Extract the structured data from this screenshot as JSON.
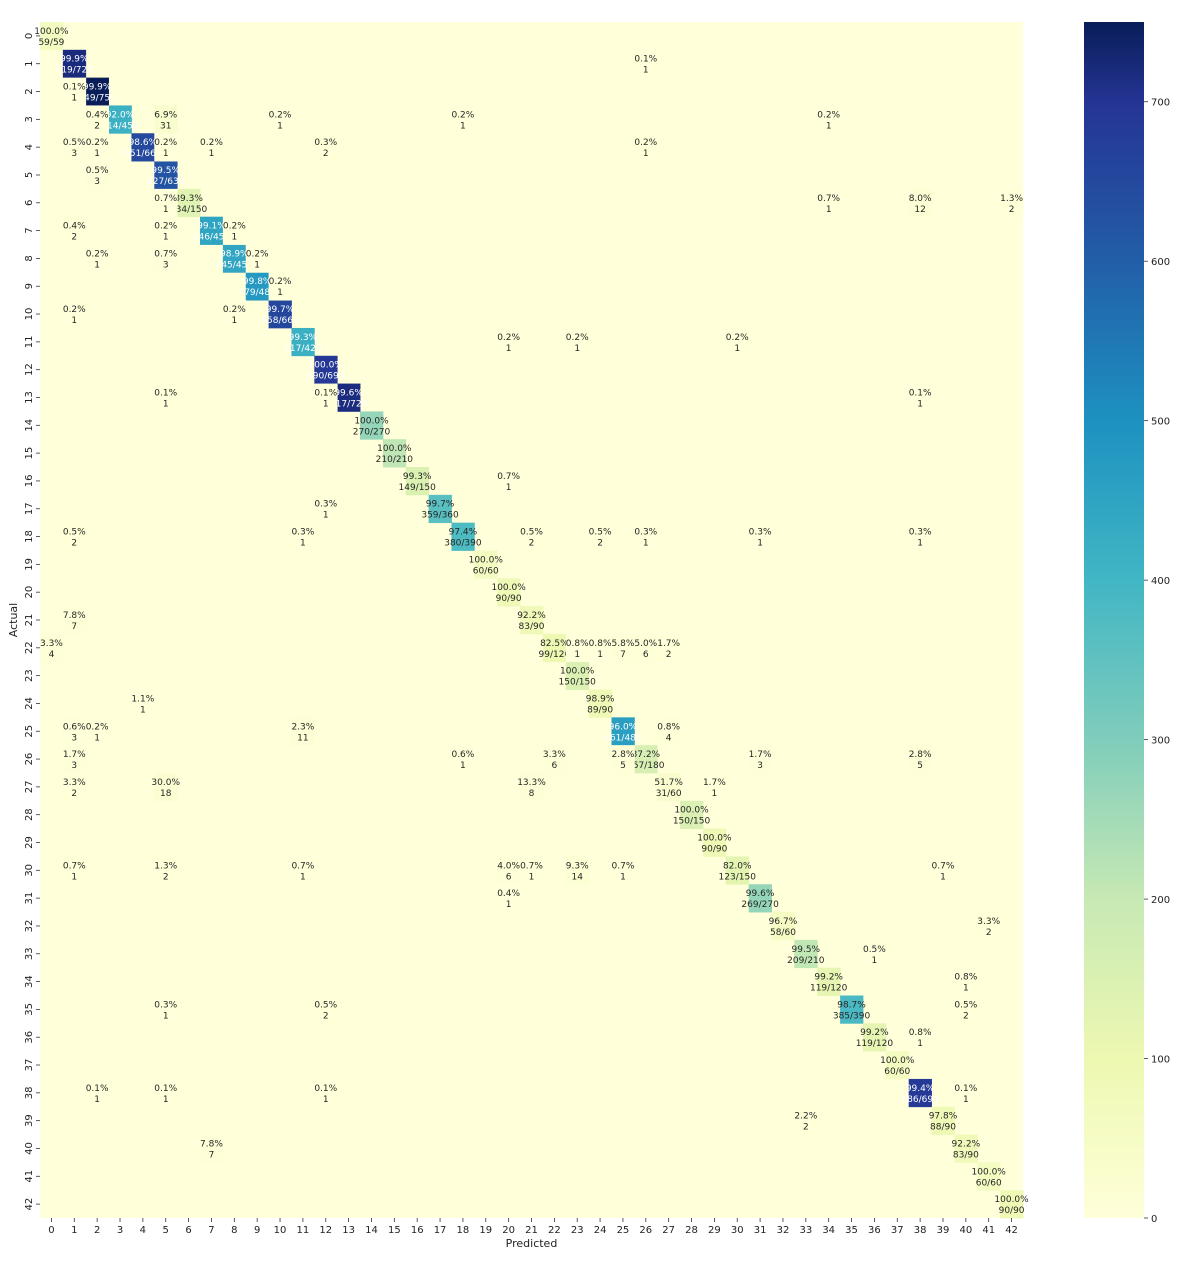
{
  "chart_data": {
    "type": "heatmap",
    "title": "",
    "xlabel": "Predicted",
    "ylabel": "Actual",
    "classes": [
      "0",
      "1",
      "2",
      "3",
      "4",
      "5",
      "6",
      "7",
      "8",
      "9",
      "10",
      "11",
      "12",
      "13",
      "14",
      "15",
      "16",
      "17",
      "18",
      "19",
      "20",
      "21",
      "22",
      "23",
      "24",
      "25",
      "26",
      "27",
      "28",
      "29",
      "30",
      "31",
      "32",
      "33",
      "34",
      "35",
      "36",
      "37",
      "38",
      "39",
      "40",
      "41",
      "42"
    ],
    "colormap": "YlGnBu",
    "colorbar": {
      "min": 0,
      "max": 750,
      "ticks": [
        0,
        100,
        200,
        300,
        400,
        500,
        600,
        700
      ]
    },
    "diagonal": [
      {
        "class": 0,
        "count": 59,
        "total": 59,
        "pct": "100.0%"
      },
      {
        "class": 1,
        "count": 719,
        "total": 720,
        "pct": "99.9%"
      },
      {
        "class": 2,
        "count": 749,
        "total": 750,
        "pct": "99.9%"
      },
      {
        "class": 3,
        "count": 414,
        "total": 450,
        "pct": "92.0%"
      },
      {
        "class": 4,
        "count": 651,
        "total": 660,
        "pct": "98.6%"
      },
      {
        "class": 5,
        "count": 627,
        "total": 630,
        "pct": "99.5%"
      },
      {
        "class": 6,
        "count": 134,
        "total": 150,
        "pct": "89.3%"
      },
      {
        "class": 7,
        "count": 446,
        "total": 450,
        "pct": "99.1%"
      },
      {
        "class": 8,
        "count": 445,
        "total": 450,
        "pct": "98.9%"
      },
      {
        "class": 9,
        "count": 479,
        "total": 480,
        "pct": "99.8%"
      },
      {
        "class": 10,
        "count": 658,
        "total": 660,
        "pct": "99.7%"
      },
      {
        "class": 11,
        "count": 417,
        "total": 420,
        "pct": "99.3%"
      },
      {
        "class": 12,
        "count": 690,
        "total": 690,
        "pct": "100.0%"
      },
      {
        "class": 13,
        "count": 717,
        "total": 720,
        "pct": "99.6%"
      },
      {
        "class": 14,
        "count": 270,
        "total": 270,
        "pct": "100.0%"
      },
      {
        "class": 15,
        "count": 210,
        "total": 210,
        "pct": "100.0%"
      },
      {
        "class": 16,
        "count": 149,
        "total": 150,
        "pct": "99.3%"
      },
      {
        "class": 17,
        "count": 359,
        "total": 360,
        "pct": "99.7%"
      },
      {
        "class": 18,
        "count": 380,
        "total": 390,
        "pct": "97.4%"
      },
      {
        "class": 19,
        "count": 60,
        "total": 60,
        "pct": "100.0%"
      },
      {
        "class": 20,
        "count": 90,
        "total": 90,
        "pct": "100.0%"
      },
      {
        "class": 21,
        "count": 83,
        "total": 90,
        "pct": "92.2%"
      },
      {
        "class": 22,
        "count": 99,
        "total": 120,
        "pct": "82.5%"
      },
      {
        "class": 23,
        "count": 150,
        "total": 150,
        "pct": "100.0%"
      },
      {
        "class": 24,
        "count": 89,
        "total": 90,
        "pct": "98.9%"
      },
      {
        "class": 25,
        "count": 461,
        "total": 480,
        "pct": "96.0%"
      },
      {
        "class": 26,
        "count": 157,
        "total": 180,
        "pct": "87.2%"
      },
      {
        "class": 27,
        "count": 31,
        "total": 60,
        "pct": "51.7%"
      },
      {
        "class": 28,
        "count": 150,
        "total": 150,
        "pct": "100.0%"
      },
      {
        "class": 29,
        "count": 90,
        "total": 90,
        "pct": "100.0%"
      },
      {
        "class": 30,
        "count": 123,
        "total": 150,
        "pct": "82.0%"
      },
      {
        "class": 31,
        "count": 269,
        "total": 270,
        "pct": "99.6%"
      },
      {
        "class": 32,
        "count": 58,
        "total": 60,
        "pct": "96.7%"
      },
      {
        "class": 33,
        "count": 209,
        "total": 210,
        "pct": "99.5%"
      },
      {
        "class": 34,
        "count": 119,
        "total": 120,
        "pct": "99.2%"
      },
      {
        "class": 35,
        "count": 385,
        "total": 390,
        "pct": "98.7%"
      },
      {
        "class": 36,
        "count": 119,
        "total": 120,
        "pct": "99.2%"
      },
      {
        "class": 37,
        "count": 60,
        "total": 60,
        "pct": "100.0%"
      },
      {
        "class": 38,
        "count": 686,
        "total": 690,
        "pct": "99.4%"
      },
      {
        "class": 39,
        "count": 88,
        "total": 90,
        "pct": "97.8%"
      },
      {
        "class": 40,
        "count": 83,
        "total": 90,
        "pct": "92.2%"
      },
      {
        "class": 41,
        "count": 60,
        "total": 60,
        "pct": "100.0%"
      },
      {
        "class": 42,
        "count": 90,
        "total": 90,
        "pct": "100.0%"
      }
    ],
    "off_diagonal": [
      {
        "actual": 1,
        "predicted": 26,
        "count": 1,
        "pct": "0.1%"
      },
      {
        "actual": 2,
        "predicted": 1,
        "count": 1,
        "pct": "0.1%"
      },
      {
        "actual": 3,
        "predicted": 2,
        "count": 2,
        "pct": "0.4%"
      },
      {
        "actual": 3,
        "predicted": 5,
        "count": 31,
        "pct": "6.9%"
      },
      {
        "actual": 3,
        "predicted": 10,
        "count": 1,
        "pct": "0.2%"
      },
      {
        "actual": 3,
        "predicted": 18,
        "count": 1,
        "pct": "0.2%"
      },
      {
        "actual": 3,
        "predicted": 34,
        "count": 1,
        "pct": "0.2%"
      },
      {
        "actual": 4,
        "predicted": 1,
        "count": 3,
        "pct": "0.5%"
      },
      {
        "actual": 4,
        "predicted": 2,
        "count": 1,
        "pct": "0.2%"
      },
      {
        "actual": 4,
        "predicted": 5,
        "count": 1,
        "pct": "0.2%"
      },
      {
        "actual": 4,
        "predicted": 7,
        "count": 1,
        "pct": "0.2%"
      },
      {
        "actual": 4,
        "predicted": 12,
        "count": 2,
        "pct": "0.3%"
      },
      {
        "actual": 4,
        "predicted": 26,
        "count": 1,
        "pct": "0.2%"
      },
      {
        "actual": 5,
        "predicted": 2,
        "count": 3,
        "pct": "0.5%"
      },
      {
        "actual": 6,
        "predicted": 5,
        "count": 1,
        "pct": "0.7%"
      },
      {
        "actual": 6,
        "predicted": 34,
        "count": 1,
        "pct": "0.7%"
      },
      {
        "actual": 6,
        "predicted": 38,
        "count": 12,
        "pct": "8.0%"
      },
      {
        "actual": 6,
        "predicted": 42,
        "count": 2,
        "pct": "1.3%"
      },
      {
        "actual": 7,
        "predicted": 1,
        "count": 2,
        "pct": "0.4%"
      },
      {
        "actual": 7,
        "predicted": 5,
        "count": 1,
        "pct": "0.2%"
      },
      {
        "actual": 7,
        "predicted": 8,
        "count": 1,
        "pct": "0.2%"
      },
      {
        "actual": 8,
        "predicted": 2,
        "count": 1,
        "pct": "0.2%"
      },
      {
        "actual": 8,
        "predicted": 5,
        "count": 3,
        "pct": "0.7%"
      },
      {
        "actual": 8,
        "predicted": 9,
        "count": 1,
        "pct": "0.2%"
      },
      {
        "actual": 9,
        "predicted": 10,
        "count": 1,
        "pct": "0.2%"
      },
      {
        "actual": 10,
        "predicted": 1,
        "count": 1,
        "pct": "0.2%"
      },
      {
        "actual": 10,
        "predicted": 8,
        "count": 1,
        "pct": "0.2%"
      },
      {
        "actual": 11,
        "predicted": 20,
        "count": 1,
        "pct": "0.2%"
      },
      {
        "actual": 11,
        "predicted": 23,
        "count": 1,
        "pct": "0.2%"
      },
      {
        "actual": 11,
        "predicted": 30,
        "count": 1,
        "pct": "0.2%"
      },
      {
        "actual": 13,
        "predicted": 5,
        "count": 1,
        "pct": "0.1%"
      },
      {
        "actual": 13,
        "predicted": 12,
        "count": 1,
        "pct": "0.1%"
      },
      {
        "actual": 13,
        "predicted": 38,
        "count": 1,
        "pct": "0.1%"
      },
      {
        "actual": 16,
        "predicted": 20,
        "count": 1,
        "pct": "0.7%"
      },
      {
        "actual": 17,
        "predicted": 12,
        "count": 1,
        "pct": "0.3%"
      },
      {
        "actual": 18,
        "predicted": 1,
        "count": 2,
        "pct": "0.5%"
      },
      {
        "actual": 18,
        "predicted": 11,
        "count": 1,
        "pct": "0.3%"
      },
      {
        "actual": 18,
        "predicted": 21,
        "count": 2,
        "pct": "0.5%"
      },
      {
        "actual": 18,
        "predicted": 24,
        "count": 2,
        "pct": "0.5%"
      },
      {
        "actual": 18,
        "predicted": 26,
        "count": 1,
        "pct": "0.3%"
      },
      {
        "actual": 18,
        "predicted": 31,
        "count": 1,
        "pct": "0.3%"
      },
      {
        "actual": 18,
        "predicted": 38,
        "count": 1,
        "pct": "0.3%"
      },
      {
        "actual": 21,
        "predicted": 1,
        "count": 7,
        "pct": "7.8%"
      },
      {
        "actual": 22,
        "predicted": 0,
        "count": 4,
        "pct": "3.3%"
      },
      {
        "actual": 22,
        "predicted": 23,
        "count": 1,
        "pct": "0.8%"
      },
      {
        "actual": 22,
        "predicted": 24,
        "count": 1,
        "pct": "0.8%"
      },
      {
        "actual": 22,
        "predicted": 25,
        "count": 7,
        "pct": "5.8%"
      },
      {
        "actual": 22,
        "predicted": 26,
        "count": 6,
        "pct": "5.0%"
      },
      {
        "actual": 22,
        "predicted": 27,
        "count": 2,
        "pct": "1.7%"
      },
      {
        "actual": 24,
        "predicted": 4,
        "count": 1,
        "pct": "1.1%"
      },
      {
        "actual": 25,
        "predicted": 1,
        "count": 3,
        "pct": "0.6%"
      },
      {
        "actual": 25,
        "predicted": 2,
        "count": 1,
        "pct": "0.2%"
      },
      {
        "actual": 25,
        "predicted": 11,
        "count": 11,
        "pct": "2.3%"
      },
      {
        "actual": 25,
        "predicted": 27,
        "count": 4,
        "pct": "0.8%"
      },
      {
        "actual": 26,
        "predicted": 1,
        "count": 3,
        "pct": "1.7%"
      },
      {
        "actual": 26,
        "predicted": 18,
        "count": 1,
        "pct": "0.6%"
      },
      {
        "actual": 26,
        "predicted": 22,
        "count": 6,
        "pct": "3.3%"
      },
      {
        "actual": 26,
        "predicted": 25,
        "count": 5,
        "pct": "2.8%"
      },
      {
        "actual": 26,
        "predicted": 31,
        "count": 3,
        "pct": "1.7%"
      },
      {
        "actual": 26,
        "predicted": 38,
        "count": 5,
        "pct": "2.8%"
      },
      {
        "actual": 27,
        "predicted": 1,
        "count": 2,
        "pct": "3.3%"
      },
      {
        "actual": 27,
        "predicted": 5,
        "count": 18,
        "pct": "30.0%"
      },
      {
        "actual": 27,
        "predicted": 21,
        "count": 8,
        "pct": "13.3%"
      },
      {
        "actual": 27,
        "predicted": 29,
        "count": 1,
        "pct": "1.7%"
      },
      {
        "actual": 30,
        "predicted": 1,
        "count": 1,
        "pct": "0.7%"
      },
      {
        "actual": 30,
        "predicted": 5,
        "count": 2,
        "pct": "1.3%"
      },
      {
        "actual": 30,
        "predicted": 11,
        "count": 1,
        "pct": "0.7%"
      },
      {
        "actual": 30,
        "predicted": 20,
        "count": 6,
        "pct": "4.0%"
      },
      {
        "actual": 30,
        "predicted": 21,
        "count": 1,
        "pct": "0.7%"
      },
      {
        "actual": 30,
        "predicted": 23,
        "count": 14,
        "pct": "9.3%"
      },
      {
        "actual": 30,
        "predicted": 25,
        "count": 1,
        "pct": "0.7%"
      },
      {
        "actual": 30,
        "predicted": 39,
        "count": 1,
        "pct": "0.7%"
      },
      {
        "actual": 31,
        "predicted": 20,
        "count": 1,
        "pct": "0.4%"
      },
      {
        "actual": 32,
        "predicted": 41,
        "count": 2,
        "pct": "3.3%"
      },
      {
        "actual": 33,
        "predicted": 36,
        "count": 1,
        "pct": "0.5%"
      },
      {
        "actual": 34,
        "predicted": 40,
        "count": 1,
        "pct": "0.8%"
      },
      {
        "actual": 35,
        "predicted": 5,
        "count": 1,
        "pct": "0.3%"
      },
      {
        "actual": 35,
        "predicted": 12,
        "count": 2,
        "pct": "0.5%"
      },
      {
        "actual": 35,
        "predicted": 40,
        "count": 2,
        "pct": "0.5%"
      },
      {
        "actual": 36,
        "predicted": 38,
        "count": 1,
        "pct": "0.8%"
      },
      {
        "actual": 38,
        "predicted": 2,
        "count": 1,
        "pct": "0.1%"
      },
      {
        "actual": 38,
        "predicted": 5,
        "count": 1,
        "pct": "0.1%"
      },
      {
        "actual": 38,
        "predicted": 12,
        "count": 1,
        "pct": "0.1%"
      },
      {
        "actual": 38,
        "predicted": 40,
        "count": 1,
        "pct": "0.1%"
      },
      {
        "actual": 39,
        "predicted": 33,
        "count": 2,
        "pct": "2.2%"
      },
      {
        "actual": 40,
        "predicted": 7,
        "count": 7,
        "pct": "7.8%"
      }
    ]
  }
}
